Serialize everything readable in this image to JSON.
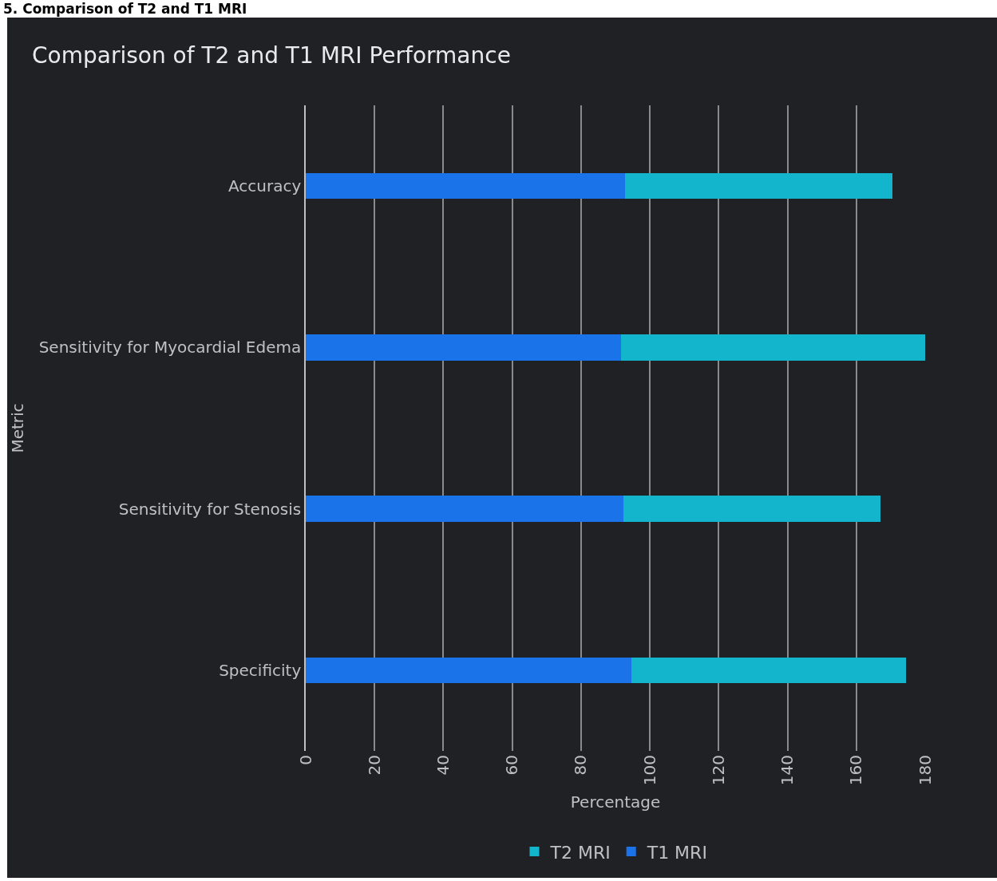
{
  "chart_data": {
    "type": "bar",
    "orientation": "horizontal",
    "stacked": true,
    "title": "Comparison of T2 and T1 MRI Performance",
    "xlabel": "Percentage",
    "ylabel": "Metric",
    "annotations": [
      "5. Comparison of T2 and T1 MRI"
    ],
    "categories": [
      "Accuracy",
      "Sensitivity for Myocardial Edema",
      "Sensitivity for Stenosis",
      "Specificity"
    ],
    "series": [
      {
        "name": "T1 MRI",
        "color": "#1a73e8",
        "values": [
          92.7,
          91.7,
          92.3,
          94.6
        ]
      },
      {
        "name": "T2 MRI",
        "color": "#12b5cb",
        "values": [
          77.8,
          88.3,
          74.7,
          79.9
        ]
      }
    ],
    "xlim": [
      0,
      180
    ],
    "xticks": [
      0,
      20,
      40,
      60,
      80,
      100,
      120,
      140,
      160,
      180
    ],
    "grid": "x",
    "legend": "bottom"
  }
}
